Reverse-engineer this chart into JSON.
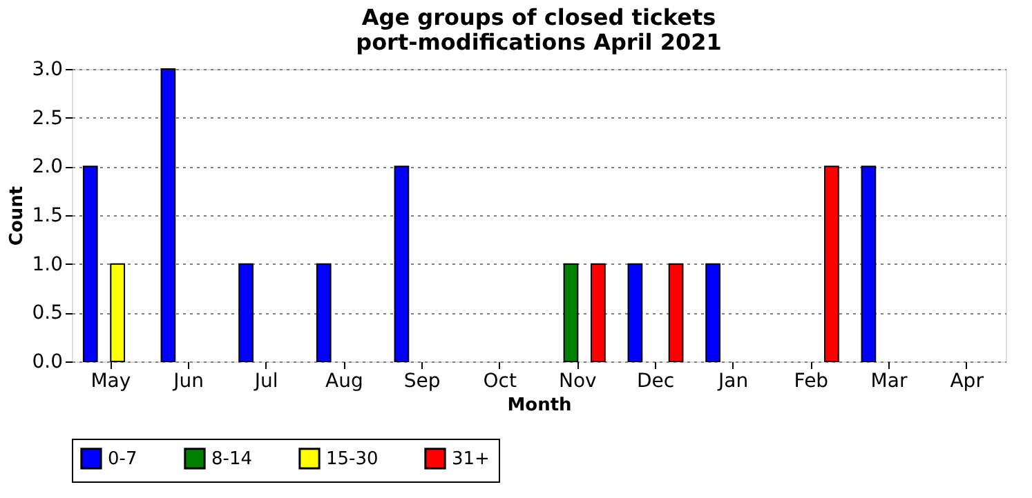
{
  "chart_data": {
    "type": "bar",
    "title": "Age groups of closed tickets\nport-modifications April 2021",
    "xlabel": "Month",
    "ylabel": "Count",
    "categories": [
      "May",
      "Jun",
      "Jul",
      "Aug",
      "Sep",
      "Oct",
      "Nov",
      "Dec",
      "Jan",
      "Feb",
      "Mar",
      "Apr"
    ],
    "series": [
      {
        "name": "0-7",
        "color": "#0000ff",
        "values": [
          2,
          3,
          1,
          1,
          2,
          null,
          null,
          1,
          1,
          null,
          2,
          null
        ]
      },
      {
        "name": "8-14",
        "color": "#008000",
        "values": [
          null,
          null,
          null,
          null,
          null,
          null,
          1,
          null,
          null,
          null,
          null,
          null
        ]
      },
      {
        "name": "15-30",
        "color": "#ffff00",
        "values": [
          1,
          null,
          null,
          null,
          null,
          null,
          null,
          null,
          null,
          null,
          null,
          null
        ]
      },
      {
        "name": "31+",
        "color": "#ff0000",
        "values": [
          null,
          null,
          null,
          null,
          null,
          null,
          1,
          1,
          null,
          2,
          null,
          null
        ]
      }
    ],
    "ylim": [
      0,
      3
    ],
    "yticks": [
      {
        "value": 0,
        "label": "0.0"
      },
      0.5,
      {
        "value": 1,
        "label": "1.0"
      },
      1.5,
      {
        "value": 2,
        "label": "2.0"
      },
      2.5,
      {
        "value": 3,
        "label": "3.0"
      }
    ],
    "grid": "y",
    "legend": "bottom"
  }
}
